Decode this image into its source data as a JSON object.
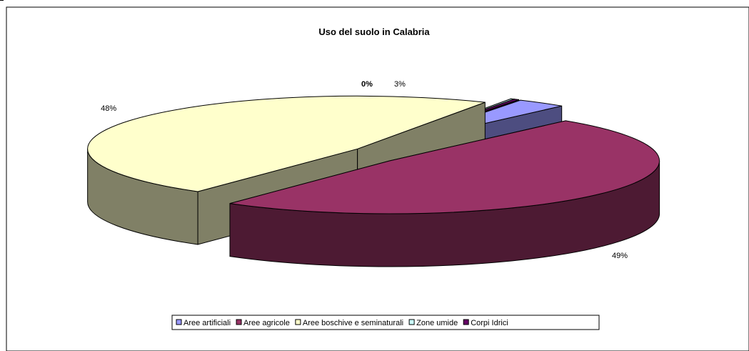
{
  "chart_data": {
    "type": "pie",
    "title": "Uso del suolo in Calabria",
    "slices": [
      {
        "label": "Aree artificiali",
        "value": 3,
        "data_label": "3%",
        "color": "#9999ff"
      },
      {
        "label": "Aree agricole",
        "value": 49,
        "data_label": "49%",
        "color": "#993366"
      },
      {
        "label": "Aree boschive e seminaturali",
        "value": 48,
        "data_label": "48%",
        "color": "#ffffcc"
      },
      {
        "label": "Zone umide",
        "value": 0.2,
        "data_label": "",
        "color": "#ccffff"
      },
      {
        "label": "Corpi  Idrici",
        "value": 0.3,
        "data_label": "0%",
        "color": "#660066"
      }
    ],
    "legend_position": "bottom",
    "exploded": true,
    "three_d": true
  }
}
